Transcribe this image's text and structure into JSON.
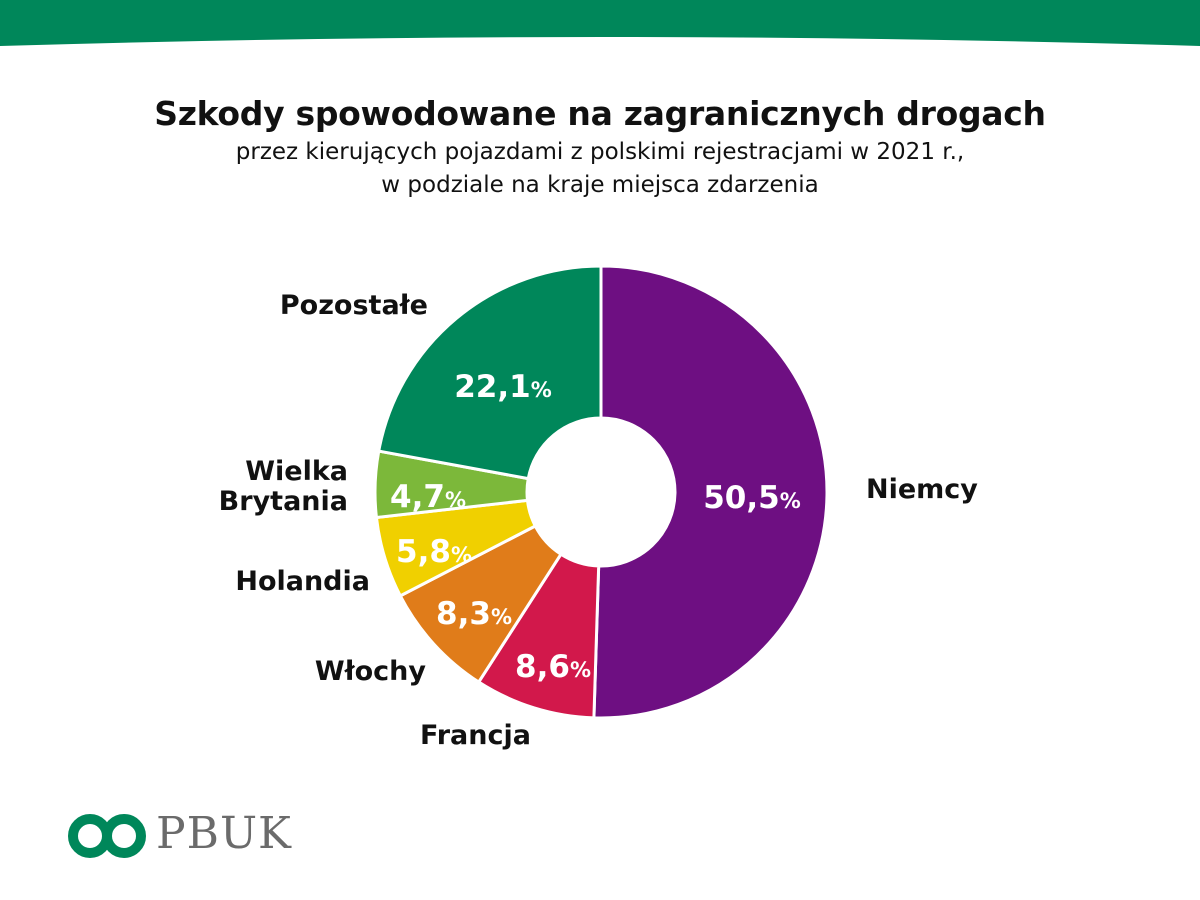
{
  "brand": {
    "name": "PBUK",
    "color": "#00875a"
  },
  "chart_data": {
    "type": "pie",
    "donut": true,
    "title": "Szkody spowodowane na zagranicznych drogach",
    "subtitle_lines": [
      "przez kierujących pojazdami z polskimi rejestracjami w 2021 r.,",
      "w podziale na kraje miejsca zdarzenia"
    ],
    "unit": "%",
    "slices": [
      {
        "name": "Niemcy",
        "value": 50.5,
        "label": "50,5",
        "color": "#6e0f82"
      },
      {
        "name": "Francja",
        "value": 8.6,
        "label": "8,6",
        "color": "#d2184b"
      },
      {
        "name": "Włochy",
        "value": 8.3,
        "label": "8,3",
        "color": "#e07c1a"
      },
      {
        "name": "Holandia",
        "value": 5.8,
        "label": "5,8",
        "color": "#f0d000"
      },
      {
        "name": "Wielka Brytania",
        "value": 4.7,
        "label": "4,7",
        "color": "#7cb83a"
      },
      {
        "name": "Pozostałe",
        "value": 22.1,
        "label": "22,1",
        "color": "#00875a"
      }
    ]
  }
}
